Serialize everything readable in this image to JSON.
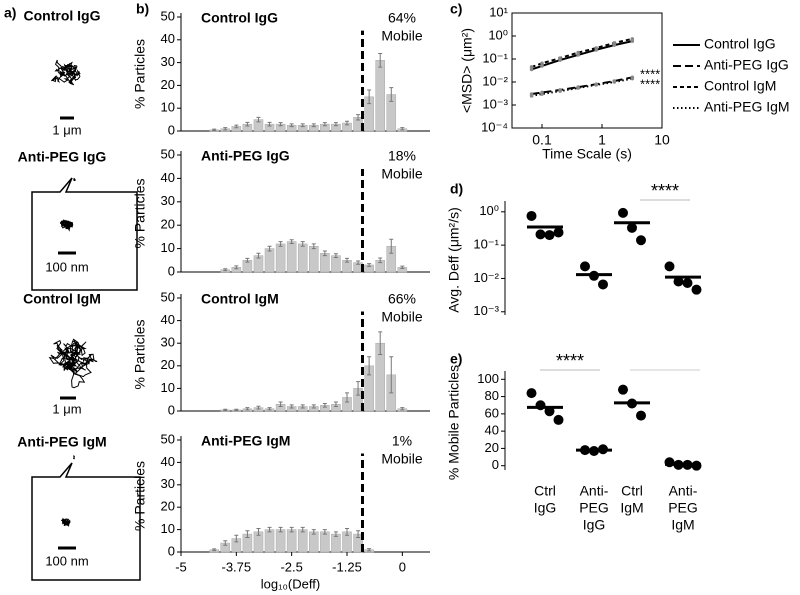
{
  "panels": {
    "label": "a)",
    "trajectories": [
      {
        "title": "Control IgG",
        "scale": "1 μm"
      },
      {
        "title": "Anti-PEG IgG",
        "scale": "100 nm"
      },
      {
        "title": "Control IgM",
        "scale": "1 μm"
      },
      {
        "title": "Anti-PEG IgM",
        "scale": "100 nm"
      }
    ]
  },
  "chart_data": [
    {
      "type": "histogram",
      "label": "b)",
      "title": "Control IgG",
      "annotation": [
        "64%",
        "Mobile"
      ],
      "ylabel": "% Particles",
      "bins": [
        -4.625,
        -4.375,
        -4.125,
        -3.875,
        -3.625,
        -3.375,
        -3.125,
        -2.875,
        -2.625,
        -2.375,
        -2.125,
        -1.875,
        -1.625,
        -1.375,
        -1.125,
        -0.875,
        -0.625,
        -0.375,
        -0.125,
        0.125
      ],
      "values": [
        0,
        0.5,
        1,
        2,
        3,
        5,
        3,
        3,
        2.5,
        2.5,
        2.5,
        3,
        3,
        3.5,
        6,
        15,
        31,
        16,
        1
      ],
      "errors": [
        0,
        0.3,
        0.5,
        0.6,
        0.8,
        1,
        0.8,
        0.7,
        0.6,
        0.6,
        0.6,
        0.7,
        0.7,
        0.8,
        1.2,
        3,
        3,
        3,
        0.5
      ],
      "threshold": -0.9,
      "color": "#c8c8c8",
      "xlim": [
        -5,
        0.625
      ],
      "ylim": [
        0,
        50
      ],
      "yticks": [
        0,
        10,
        20,
        30,
        40,
        50
      ]
    },
    {
      "type": "histogram",
      "title": "Anti-PEG IgG",
      "annotation": [
        "18%",
        "Mobile"
      ],
      "ylabel": "% Particles",
      "bins": [
        -4.625,
        -4.375,
        -4.125,
        -3.875,
        -3.625,
        -3.375,
        -3.125,
        -2.875,
        -2.625,
        -2.375,
        -2.125,
        -1.875,
        -1.625,
        -1.375,
        -1.125,
        -0.875,
        -0.625,
        -0.375,
        -0.125,
        0.125
      ],
      "values": [
        0,
        0,
        1,
        2,
        5,
        7,
        10,
        12,
        13,
        12,
        11,
        8,
        7,
        5,
        4,
        3,
        5,
        11,
        2
      ],
      "errors": [
        0,
        0,
        0.4,
        0.6,
        0.8,
        1,
        1,
        1,
        0.8,
        1,
        1,
        1,
        0.8,
        0.8,
        0.7,
        0.6,
        1,
        3,
        0.5
      ],
      "threshold": -0.9,
      "color": "#c8c8c8",
      "xlim": [
        -5,
        0.625
      ],
      "ylim": [
        0,
        50
      ],
      "yticks": [
        0,
        10,
        20,
        30,
        40,
        50
      ]
    },
    {
      "type": "histogram",
      "title": "Control IgM",
      "annotation": [
        "66%",
        "Mobile"
      ],
      "ylabel": "% Particles",
      "bins": [
        -4.625,
        -4.375,
        -4.125,
        -3.875,
        -3.625,
        -3.375,
        -3.125,
        -2.875,
        -2.625,
        -2.375,
        -2.125,
        -1.875,
        -1.625,
        -1.375,
        -1.125,
        -0.875,
        -0.625,
        -0.375,
        -0.125,
        0.125
      ],
      "values": [
        0,
        0,
        0.5,
        0.5,
        1,
        1.5,
        1,
        3,
        2,
        2,
        2,
        2.5,
        3,
        6,
        10,
        20,
        30,
        16,
        1
      ],
      "errors": [
        0,
        0,
        0.3,
        0.3,
        0.5,
        0.6,
        0.5,
        1,
        0.7,
        0.7,
        0.7,
        0.8,
        1,
        2,
        3,
        4,
        5,
        8,
        0.5
      ],
      "threshold": -0.9,
      "color": "#c8c8c8",
      "xlim": [
        -5,
        0.625
      ],
      "ylim": [
        0,
        50
      ],
      "yticks": [
        0,
        10,
        20,
        30,
        40,
        50
      ]
    },
    {
      "type": "histogram",
      "title": "Anti-PEG IgM",
      "annotation": [
        "1%",
        "Mobile"
      ],
      "ylabel": "% Particles",
      "xlabel": "log₁₀(Deff)",
      "bins": [
        -4.625,
        -4.375,
        -4.125,
        -3.875,
        -3.625,
        -3.375,
        -3.125,
        -2.875,
        -2.625,
        -2.375,
        -2.125,
        -1.875,
        -1.625,
        -1.375,
        -1.125,
        -0.875,
        -0.625,
        -0.375,
        -0.125,
        0.125
      ],
      "values": [
        0,
        1,
        4,
        6,
        8,
        9,
        10,
        10,
        10,
        10,
        9,
        9,
        8,
        9,
        8,
        1,
        0,
        0,
        0
      ],
      "errors": [
        0,
        0.4,
        1,
        1.5,
        1.5,
        1.5,
        1,
        1,
        1,
        1,
        1,
        1,
        1,
        1.5,
        1.5,
        0.5,
        0,
        0,
        0
      ],
      "threshold": -0.9,
      "color": "#c8c8c8",
      "xlim": [
        -5,
        0.625
      ],
      "ylim": [
        0,
        50
      ],
      "yticks": [
        0,
        10,
        20,
        30,
        40,
        50
      ],
      "xticks": [
        -5,
        -3.75,
        -2.5,
        -1.25,
        0
      ]
    },
    {
      "type": "line",
      "label": "c)",
      "xlabel": "Time Scale (s)",
      "ylabel": "<MSD> (μm²)",
      "x": [
        0.067,
        0.1,
        0.2,
        0.4,
        0.8,
        1.6,
        3.2
      ],
      "series": [
        {
          "name": "Control IgG",
          "color": "#000000",
          "dash": "solid",
          "values": [
            0.035,
            0.05,
            0.09,
            0.15,
            0.25,
            0.4,
            0.6
          ]
        },
        {
          "name": "Anti-PEG IgG",
          "color": "#000000",
          "dash": "long",
          "values": [
            0.003,
            0.0035,
            0.0045,
            0.006,
            0.008,
            0.011,
            0.016
          ]
        },
        {
          "name": "Control IgM",
          "color": "#000000",
          "dash": "short",
          "values": [
            0.045,
            0.065,
            0.11,
            0.19,
            0.3,
            0.5,
            0.75
          ]
        },
        {
          "name": "Anti-PEG IgM",
          "color": "#000000",
          "dash": "dotted",
          "values": [
            0.0025,
            0.003,
            0.004,
            0.0055,
            0.0075,
            0.01,
            0.014
          ]
        }
      ],
      "annotations": [
        "****",
        "****"
      ],
      "xlog": true,
      "ylog": true,
      "xlim": [
        0.0316,
        10
      ],
      "ylim": [
        0.0001,
        10
      ],
      "xticks": [
        0.1,
        1,
        10
      ],
      "yticks": [
        {
          "value": 0.0001,
          "label": "10⁻⁴"
        },
        {
          "value": 0.001,
          "label": "10⁻³"
        },
        {
          "value": 0.01,
          "label": "10⁻²"
        },
        {
          "value": 0.1,
          "label": "10⁻¹"
        },
        {
          "value": 1,
          "label": "10⁰"
        },
        {
          "value": 10,
          "label": "10¹"
        }
      ]
    },
    {
      "type": "dot",
      "label": "d)",
      "ylabel": "Avg. Deff (μm²/s)",
      "significance": "****",
      "groups": [
        {
          "values": [
            0.75,
            0.21,
            0.2,
            0.24
          ],
          "mean": 0.35
        },
        {
          "values": [
            0.023,
            0.012,
            0.0066
          ],
          "mean": 0.013
        },
        {
          "values": [
            0.93,
            0.33,
            0.14
          ],
          "mean": 0.47
        },
        {
          "values": [
            0.023,
            0.0081,
            0.0073,
            0.0046
          ],
          "mean": 0.011
        }
      ],
      "ylog": true,
      "ylim": [
        0.0008,
        1.6
      ],
      "yticks": [
        {
          "value": 1,
          "label": "10⁰"
        },
        {
          "value": 0.1,
          "label": "10⁻¹"
        },
        {
          "value": 0.01,
          "label": "10⁻²"
        },
        {
          "value": 0.001,
          "label": "10⁻³"
        }
      ]
    },
    {
      "type": "dot",
      "label": "e)",
      "ylabel": "% Mobile Particles",
      "significance": "****",
      "groups": [
        {
          "values": [
            84,
            70,
            63,
            53
          ],
          "mean": 67.5
        },
        {
          "values": [
            18,
            17,
            19
          ],
          "mean": 18
        },
        {
          "values": [
            88,
            72,
            58
          ],
          "mean": 72.7
        },
        {
          "values": [
            4,
            1,
            1,
            0
          ],
          "mean": 1.5
        }
      ],
      "categories": [
        [
          "Ctrl",
          "IgG"
        ],
        [
          "Anti-",
          "PEG",
          "IgG"
        ],
        [
          "Ctrl",
          "IgM"
        ],
        [
          "Anti-",
          "PEG",
          "IgM"
        ]
      ],
      "ylim": [
        -5,
        105
      ],
      "yticks": [
        0,
        20,
        40,
        60,
        80,
        100
      ]
    }
  ]
}
